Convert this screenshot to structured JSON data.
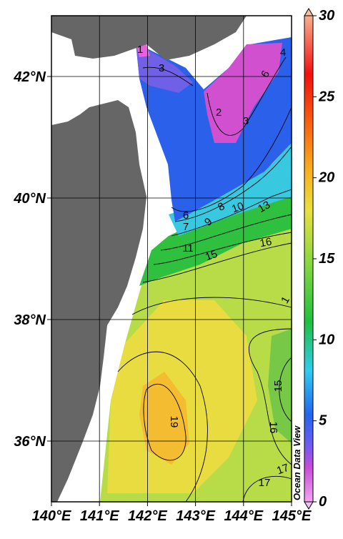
{
  "map": {
    "xlim": [
      140,
      145
    ],
    "ylim": [
      35,
      43
    ],
    "lon_ticks": [
      {
        "value": 140,
        "label": "140°E"
      },
      {
        "value": 141,
        "label": "141°E"
      },
      {
        "value": 142,
        "label": "142°E"
      },
      {
        "value": 143,
        "label": "143°E"
      },
      {
        "value": 144,
        "label": "144°E"
      },
      {
        "value": 145,
        "label": "145°E"
      }
    ],
    "lat_ticks": [
      {
        "value": 36,
        "label": "36°N"
      },
      {
        "value": 38,
        "label": "38°N"
      },
      {
        "value": 40,
        "label": "40°N"
      },
      {
        "value": 42,
        "label": "42°N"
      }
    ],
    "colorbar": {
      "range": [
        0,
        30
      ],
      "ticks": [
        0,
        5,
        10,
        15,
        20,
        25,
        30
      ]
    },
    "contour_labels": [
      1,
      3,
      2,
      3,
      4,
      6,
      6,
      7,
      9,
      8,
      10,
      13,
      11,
      15,
      16,
      1,
      15,
      19,
      16,
      17,
      17
    ],
    "watermark": "Ocean Data View"
  }
}
